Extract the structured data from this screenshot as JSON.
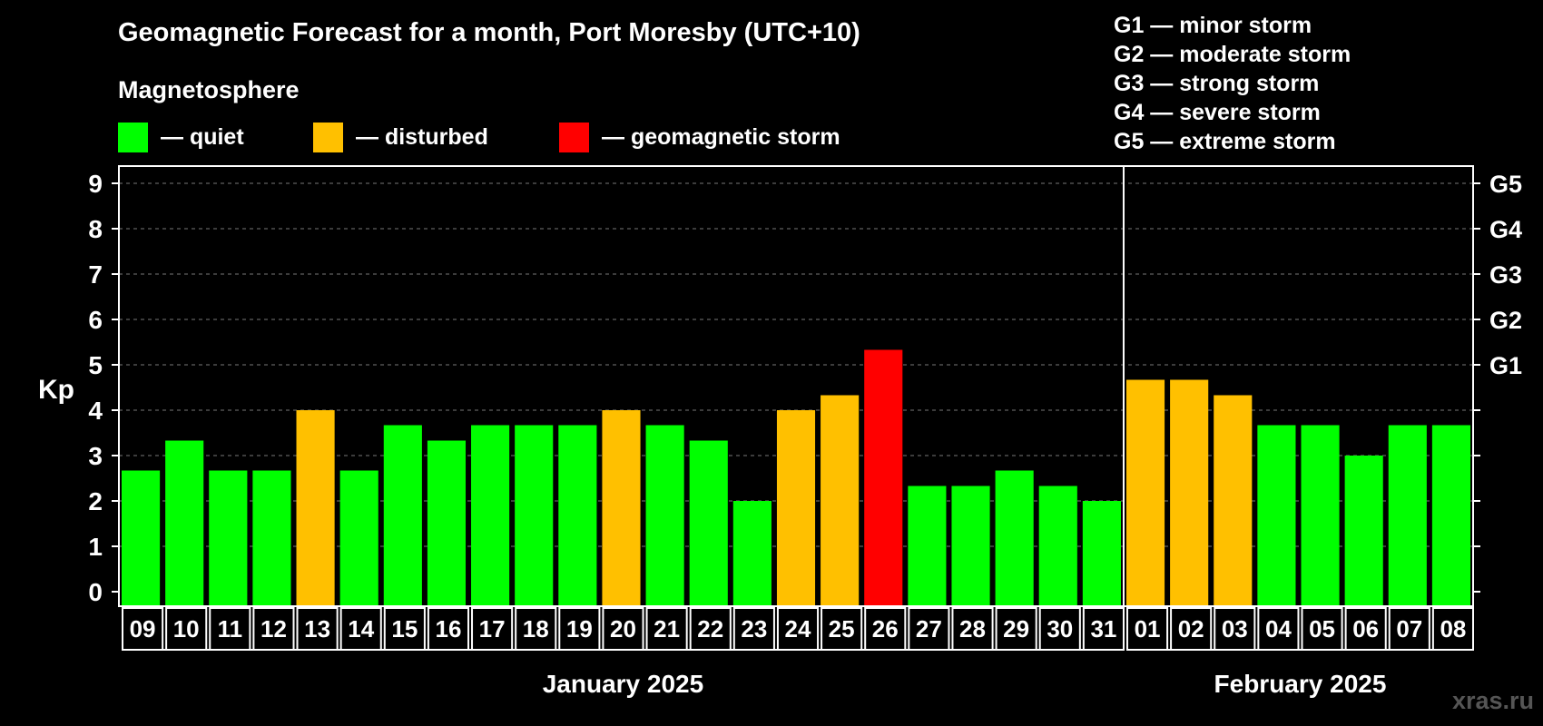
{
  "chart_data": {
    "type": "bar",
    "title": "Geomagnetic Forecast for a month, Port Moresby (UTC+10)",
    "subtitle": "Magnetosphere",
    "ylabel": "Kp",
    "ylim": [
      0,
      9
    ],
    "yticks": [
      "0",
      "1",
      "2",
      "3",
      "4",
      "5",
      "6",
      "7",
      "8",
      "9"
    ],
    "right_axis": [
      {
        "kp": 5,
        "label": "G1"
      },
      {
        "kp": 6,
        "label": "G2"
      },
      {
        "kp": 7,
        "label": "G3"
      },
      {
        "kp": 8,
        "label": "G4"
      },
      {
        "kp": 9,
        "label": "G5"
      }
    ],
    "categories": [
      "09",
      "10",
      "11",
      "12",
      "13",
      "14",
      "15",
      "16",
      "17",
      "18",
      "19",
      "20",
      "21",
      "22",
      "23",
      "24",
      "25",
      "26",
      "27",
      "28",
      "29",
      "30",
      "31",
      "01",
      "02",
      "03",
      "04",
      "05",
      "06",
      "07",
      "08"
    ],
    "values": [
      2.67,
      3.33,
      2.67,
      2.67,
      4,
      2.67,
      3.67,
      3.33,
      3.67,
      3.67,
      3.67,
      4,
      3.67,
      3.33,
      2,
      4,
      4.33,
      5.33,
      2.33,
      2.33,
      2.67,
      2.33,
      2,
      4.67,
      4.67,
      4.33,
      3.67,
      3.67,
      3,
      3.67,
      3.67
    ],
    "status": [
      "quiet",
      "quiet",
      "quiet",
      "quiet",
      "disturbed",
      "quiet",
      "quiet",
      "quiet",
      "quiet",
      "quiet",
      "quiet",
      "disturbed",
      "quiet",
      "quiet",
      "quiet",
      "disturbed",
      "disturbed",
      "storm",
      "quiet",
      "quiet",
      "quiet",
      "quiet",
      "quiet",
      "disturbed",
      "disturbed",
      "disturbed",
      "quiet",
      "quiet",
      "quiet",
      "quiet",
      "quiet"
    ],
    "months": [
      {
        "label": "January 2025",
        "count": 23
      },
      {
        "label": "February 2025",
        "count": 8
      }
    ],
    "grid": true,
    "colors": {
      "quiet": "#00ff00",
      "disturbed": "#ffc000",
      "storm": "#ff0000"
    },
    "legend": [
      {
        "key": "quiet",
        "label": "— quiet"
      },
      {
        "key": "disturbed",
        "label": "— disturbed"
      },
      {
        "key": "storm",
        "label": "— geomagnetic storm"
      }
    ],
    "g_legend": [
      "G1 — minor storm",
      "G2 — moderate storm",
      "G3 — strong storm",
      "G4 — severe storm",
      "G5 — extreme storm"
    ]
  },
  "watermark": "xras.ru"
}
